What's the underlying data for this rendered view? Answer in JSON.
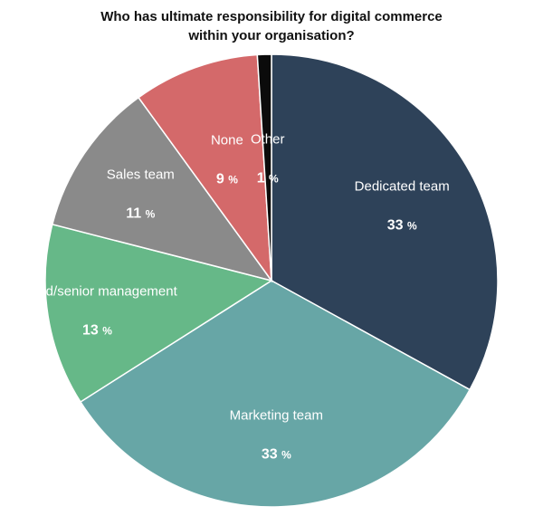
{
  "chart_data": {
    "type": "pie",
    "title_lines": [
      "Who has ultimate responsibility for digital commerce",
      "within your organisation?"
    ],
    "unit": "%",
    "slices": [
      {
        "label": "Dedicated team",
        "value": 33,
        "value_text": "33",
        "color": "#2e4259"
      },
      {
        "label": "Marketing team",
        "value": 33,
        "value_text": "33",
        "color": "#67a6a6"
      },
      {
        "label": "Board/senior management",
        "value": 13,
        "value_text": "13",
        "color": "#66b888"
      },
      {
        "label": "Sales team",
        "value": 11,
        "value_text": "11",
        "color": "#8a8a8a"
      },
      {
        "label": "None",
        "value": 9,
        "value_text": "9",
        "color": "#d4696a"
      },
      {
        "label": "Other",
        "value": 1,
        "value_text": "1",
        "color": "#0b0b0b"
      }
    ]
  }
}
